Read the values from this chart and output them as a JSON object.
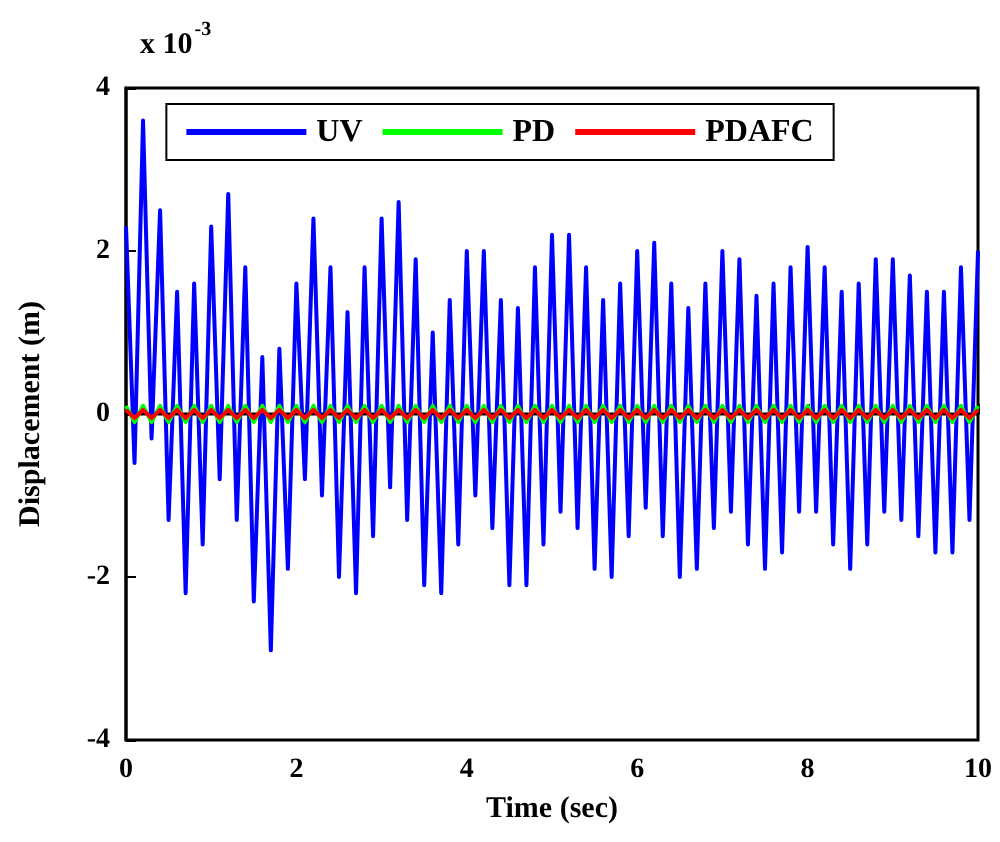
{
  "chart_data": {
    "type": "line",
    "xlabel": "Time (sec)",
    "ylabel": "Displacement (m)",
    "annotations": [
      "x 10$^{-3}$"
    ],
    "xlim": [
      0,
      10
    ],
    "xticks": [
      0,
      2,
      4,
      6,
      8,
      10
    ],
    "ylim": [
      -4,
      4
    ],
    "yticks": [
      -4,
      -2,
      0,
      2,
      4
    ],
    "legend": "top",
    "marker": "none",
    "line_style": "solid",
    "x": [
      0,
      0.1,
      0.2,
      0.3,
      0.4,
      0.5,
      0.6,
      0.7,
      0.8,
      0.9,
      1,
      1.1,
      1.2,
      1.3,
      1.4,
      1.5,
      1.6,
      1.7,
      1.8,
      1.9,
      2,
      2.1,
      2.2,
      2.3,
      2.4,
      2.5,
      2.6,
      2.7,
      2.8,
      2.9,
      3,
      3.1,
      3.2,
      3.3,
      3.4,
      3.5,
      3.6,
      3.7,
      3.8,
      3.9,
      4,
      4.1,
      4.2,
      4.3,
      4.4,
      4.5,
      4.6,
      4.7,
      4.8,
      4.9,
      5,
      5.1,
      5.2,
      5.3,
      5.4,
      5.5,
      5.6,
      5.7,
      5.8,
      5.9,
      6,
      6.1,
      6.2,
      6.3,
      6.4,
      6.5,
      6.6,
      6.7,
      6.8,
      6.9,
      7,
      7.1,
      7.2,
      7.3,
      7.4,
      7.5,
      7.6,
      7.7,
      7.8,
      7.9,
      8,
      8.1,
      8.2,
      8.3,
      8.4,
      8.5,
      8.6,
      8.7,
      8.8,
      8.9,
      9,
      9.1,
      9.2,
      9.3,
      9.4,
      9.5,
      9.6,
      9.7,
      9.8,
      9.9,
      10
    ],
    "series": [
      {
        "name": "UV",
        "color": "#0000ff",
        "values": [
          2.3,
          -0.6,
          3.6,
          -0.3,
          2.5,
          -1.3,
          1.5,
          -2.2,
          1.6,
          -1.6,
          2.3,
          -0.8,
          2.7,
          -1.3,
          1.8,
          -2.3,
          0.7,
          -2.9,
          0.8,
          -1.9,
          1.6,
          -0.8,
          2.4,
          -1.0,
          1.8,
          -2.0,
          1.25,
          -2.2,
          1.8,
          -1.5,
          2.4,
          -0.9,
          2.6,
          -1.3,
          1.9,
          -2.1,
          1.0,
          -2.2,
          1.4,
          -1.6,
          2.0,
          -1.0,
          2.0,
          -1.4,
          1.4,
          -2.1,
          1.3,
          -2.1,
          1.8,
          -1.6,
          2.2,
          -1.2,
          2.2,
          -1.4,
          1.8,
          -1.9,
          1.4,
          -2.0,
          1.6,
          -1.5,
          2.0,
          -1.15,
          2.1,
          -1.5,
          1.6,
          -2.0,
          1.3,
          -1.9,
          1.6,
          -1.4,
          2.0,
          -1.2,
          1.9,
          -1.6,
          1.45,
          -1.9,
          1.6,
          -1.7,
          1.8,
          -1.2,
          2.05,
          -1.2,
          1.8,
          -1.6,
          1.5,
          -1.9,
          1.6,
          -1.6,
          1.9,
          -1.2,
          1.9,
          -1.3,
          1.7,
          -1.5,
          1.5,
          -1.7,
          1.5,
          -1.7,
          1.8,
          -1.3,
          2.0
        ]
      },
      {
        "name": "PD",
        "color": "#00ff00",
        "values": [
          0.1,
          -0.1,
          0.1,
          -0.1,
          0.1,
          -0.1,
          0.1,
          -0.1,
          0.1,
          -0.1,
          0.1,
          -0.1,
          0.1,
          -0.1,
          0.1,
          -0.1,
          0.1,
          -0.1,
          0.1,
          -0.1,
          0.1,
          -0.1,
          0.1,
          -0.1,
          0.1,
          -0.1,
          0.1,
          -0.1,
          0.1,
          -0.1,
          0.1,
          -0.1,
          0.1,
          -0.1,
          0.1,
          -0.1,
          0.1,
          -0.1,
          0.1,
          -0.1,
          0.1,
          -0.1,
          0.1,
          -0.1,
          0.1,
          -0.1,
          0.1,
          -0.1,
          0.1,
          -0.1,
          0.1,
          -0.1,
          0.1,
          -0.1,
          0.1,
          -0.1,
          0.1,
          -0.1,
          0.1,
          -0.1,
          0.1,
          -0.1,
          0.1,
          -0.1,
          0.1,
          -0.1,
          0.1,
          -0.1,
          0.1,
          -0.1,
          0.1,
          -0.1,
          0.1,
          -0.1,
          0.1,
          -0.1,
          0.1,
          -0.1,
          0.1,
          -0.1,
          0.1,
          -0.1,
          0.1,
          -0.1,
          0.1,
          -0.1,
          0.1,
          -0.1,
          0.1,
          -0.1,
          0.1,
          -0.1,
          0.1,
          -0.1,
          0.1,
          -0.1,
          0.1,
          -0.1,
          0.1,
          -0.1,
          0.1
        ]
      },
      {
        "name": "PDAFC",
        "color": "#ff0000",
        "values": [
          0.05,
          -0.05,
          0.05,
          -0.05,
          0.05,
          -0.05,
          0.05,
          -0.05,
          0.05,
          -0.05,
          0.05,
          -0.05,
          0.05,
          -0.05,
          0.05,
          -0.05,
          0.05,
          -0.05,
          0.05,
          -0.05,
          0.05,
          -0.05,
          0.05,
          -0.05,
          0.05,
          -0.05,
          0.05,
          -0.05,
          0.05,
          -0.05,
          0.05,
          -0.05,
          0.05,
          -0.05,
          0.05,
          -0.05,
          0.05,
          -0.05,
          0.05,
          -0.05,
          0.05,
          -0.05,
          0.05,
          -0.05,
          0.05,
          -0.05,
          0.05,
          -0.05,
          0.05,
          -0.05,
          0.05,
          -0.05,
          0.05,
          -0.05,
          0.05,
          -0.05,
          0.05,
          -0.05,
          0.05,
          -0.05,
          0.05,
          -0.05,
          0.05,
          -0.05,
          0.05,
          -0.05,
          0.05,
          -0.05,
          0.05,
          -0.05,
          0.05,
          -0.05,
          0.05,
          -0.05,
          0.05,
          -0.05,
          0.05,
          -0.05,
          0.05,
          -0.05,
          0.05,
          -0.05,
          0.05,
          -0.05,
          0.05,
          -0.05,
          0.05,
          -0.05,
          0.05,
          -0.05,
          0.05,
          -0.05,
          0.05,
          -0.05,
          0.05,
          -0.05,
          0.05,
          -0.05,
          0.05,
          -0.05,
          0.05
        ]
      }
    ]
  }
}
